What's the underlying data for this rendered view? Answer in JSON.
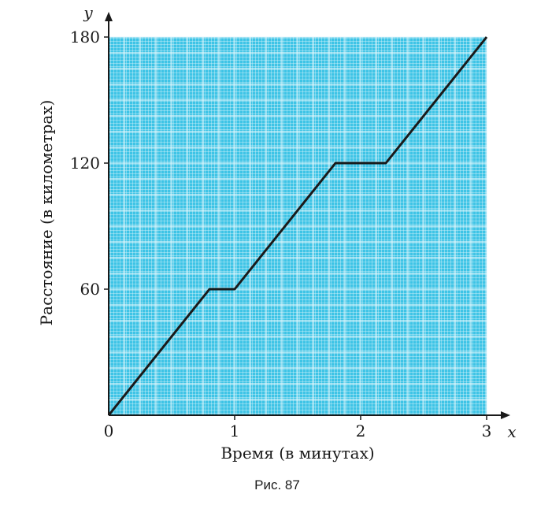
{
  "chart_data": {
    "type": "line",
    "x_axis_name": "x",
    "y_axis_name": "y",
    "xlabel": "Время (в минутах)",
    "ylabel": "Расстояние (в километрах)",
    "xlim": [
      0,
      3
    ],
    "ylim": [
      0,
      180
    ],
    "x_ticks": [
      0,
      1,
      2,
      3
    ],
    "x_tick_labels": [
      "0",
      "1",
      "2",
      "3"
    ],
    "y_ticks": [
      60,
      120,
      180
    ],
    "y_tick_labels": [
      "60",
      "120",
      "180"
    ],
    "grid": true,
    "series": [
      {
        "points": [
          {
            "x": 0,
            "y": 0
          },
          {
            "x": 0.8,
            "y": 60
          },
          {
            "x": 1.0,
            "y": 60
          },
          {
            "x": 1.8,
            "y": 120
          },
          {
            "x": 2.2,
            "y": 120
          },
          {
            "x": 3.0,
            "y": 180
          }
        ]
      }
    ],
    "colors": {
      "plot_background": "#3ec4e6",
      "grid_line": "#e6f7fc",
      "line": "#1a1a1a",
      "axis": "#1a1a1a"
    }
  },
  "caption": "Рис. 87"
}
